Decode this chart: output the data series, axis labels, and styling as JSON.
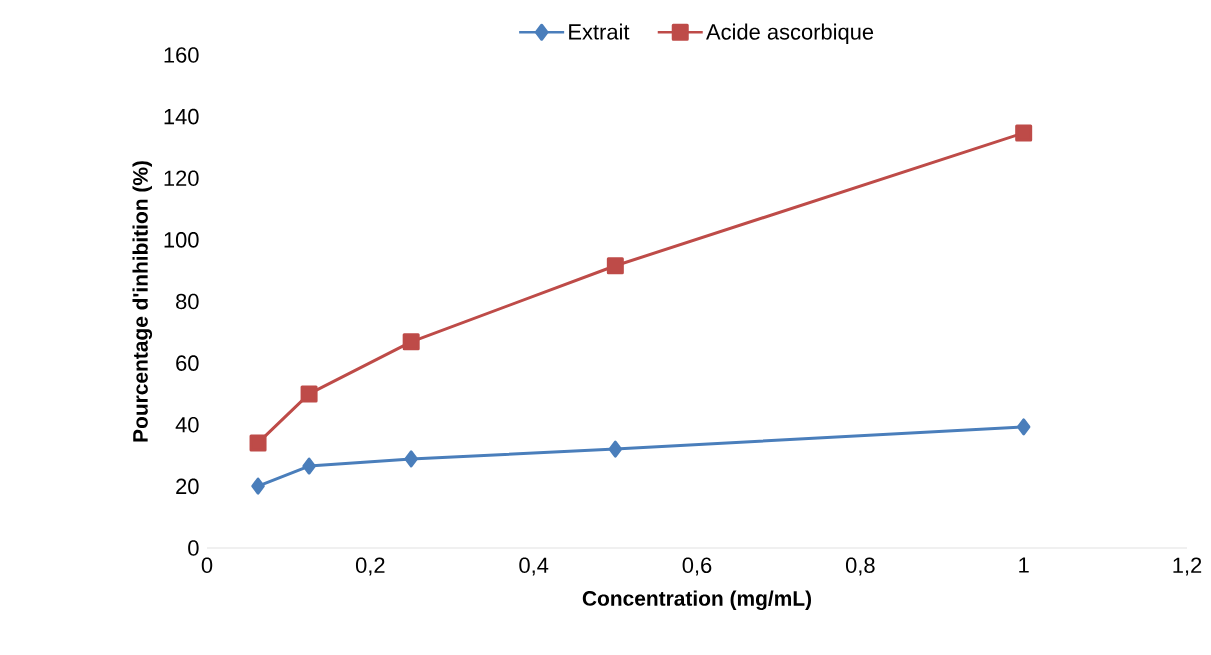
{
  "chart_data": {
    "type": "line",
    "xlabel": "Concentration (mg/mL)",
    "ylabel": "Pourcentage d'inhibition (%)",
    "x": [
      0.0625,
      0.125,
      0.25,
      0.5,
      1
    ],
    "series": [
      {
        "name": "Extrait",
        "color": "#4a7ebb",
        "marker": "diamond",
        "values": [
          20.1,
          26.6,
          28.9,
          32.1,
          39.3
        ]
      },
      {
        "name": "Acide ascorbique",
        "color": "#be4b48",
        "marker": "square",
        "values": [
          34.1,
          50,
          66.9,
          91.6,
          134.7
        ]
      }
    ],
    "xlim": [
      0,
      1.2
    ],
    "xticks": [
      0,
      {
        "value": 0.2,
        "label": "0,2"
      },
      {
        "value": 0.4,
        "label": "0,4"
      },
      {
        "value": 0.6,
        "label": "0,6"
      },
      {
        "value": 0.8,
        "label": "0,8"
      },
      1,
      {
        "value": 1.2,
        "label": "1,2"
      }
    ],
    "ylim": [
      0,
      160
    ],
    "yticks": [
      0,
      20,
      40,
      60,
      80,
      100,
      120,
      140,
      160
    ],
    "grid": false,
    "legend": "top",
    "line_style": "solid"
  }
}
